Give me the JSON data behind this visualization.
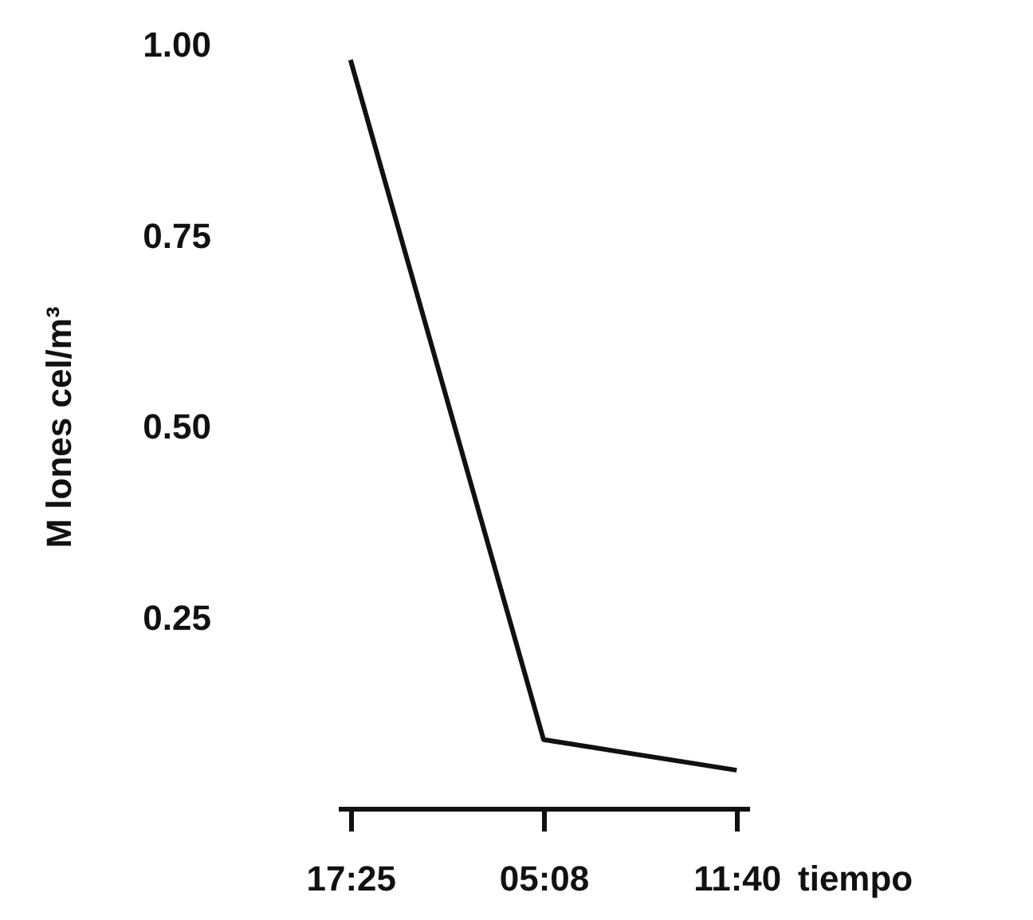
{
  "chart_data": {
    "type": "line",
    "xlabel": "tiempo",
    "ylabel": "M lones cel/m³",
    "categories": [
      "17:25",
      "05:08",
      "11:40"
    ],
    "series": [
      {
        "color": "#111111",
        "values": [
          0.98,
          0.09,
          0.05
        ]
      }
    ],
    "ylim": [
      0,
      1.0
    ],
    "yticks": [
      0.25,
      {
        "value": 0.5,
        "label": "0.50"
      },
      0.75,
      {
        "value": 1.0,
        "label": "1.00"
      }
    ]
  }
}
